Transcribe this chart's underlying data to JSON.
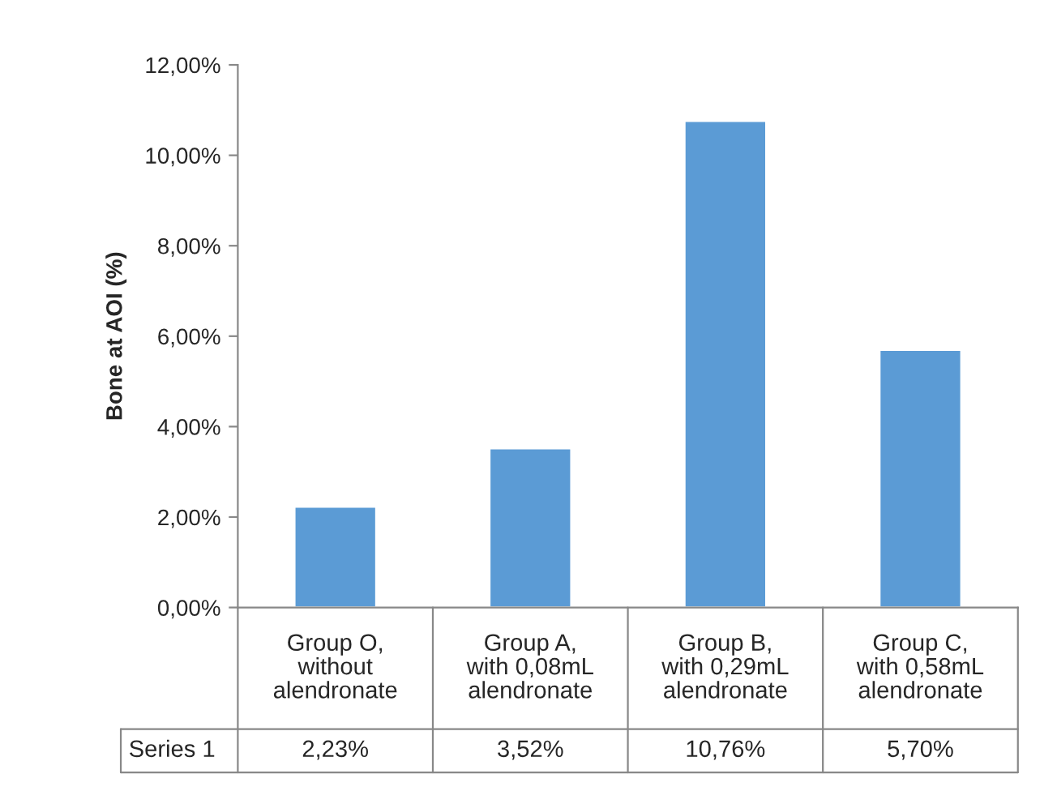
{
  "chart_data": {
    "type": "bar",
    "ylabel": "Bone at AOI (%)",
    "categories": [
      "Group O, without alendronate",
      "Group A, with 0,08mL alendronate",
      "Group B, with 0,29mL alendronate",
      "Group C, with 0,58mL alendronate"
    ],
    "series": [
      {
        "name": "Series 1",
        "color": "#5b9bd5",
        "values": [
          2.23,
          3.52,
          10.76,
          5.7
        ],
        "value_labels": [
          "2,23%",
          "3,52%",
          "10,76%",
          "5,70%"
        ]
      }
    ],
    "ylim": [
      0,
      12
    ],
    "yticks": [
      {
        "value": 0,
        "label": "0,00%"
      },
      {
        "value": 2,
        "label": "2,00%"
      },
      {
        "value": 4,
        "label": "4,00%"
      },
      {
        "value": 6,
        "label": "6,00%"
      },
      {
        "value": 8,
        "label": "8,00%"
      },
      {
        "value": 10,
        "label": "10,00%"
      },
      {
        "value": 12,
        "label": "12,00%"
      }
    ],
    "grid": false,
    "legend": false
  }
}
